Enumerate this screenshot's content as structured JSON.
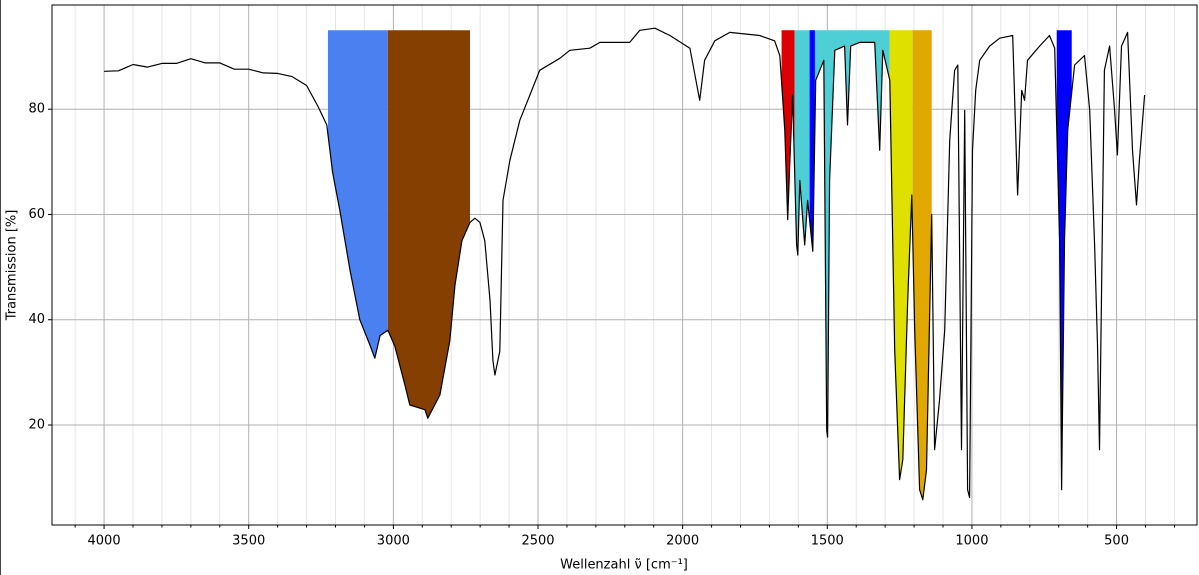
{
  "chart_data": {
    "type": "line",
    "xlabel": "Wellenzahl ν̃ [cm⁻¹]",
    "ylabel": "Transmission [%]",
    "xlim": [
      4180,
      222
    ],
    "ylim": [
      1,
      99.8
    ],
    "xticks": [
      4000,
      3500,
      3000,
      2500,
      2000,
      1500,
      1000,
      500
    ],
    "xminorticks": [
      4100,
      3900,
      3800,
      3700,
      3600,
      3400,
      3300,
      3200,
      3100,
      2900,
      2800,
      2700,
      2600,
      2400,
      2300,
      2200,
      2100,
      1900,
      1800,
      1700,
      1600,
      1400,
      1300,
      1200,
      1100,
      900,
      800,
      700,
      600,
      400,
      300
    ],
    "yticks": [
      20,
      40,
      60,
      80
    ],
    "grid": true,
    "color": "#000000",
    "x": [
      4000,
      3950,
      3900,
      3850,
      3800,
      3750,
      3700,
      3650,
      3600,
      3550,
      3500,
      3450,
      3400,
      3350,
      3300,
      3260,
      3230,
      3210,
      3185,
      3150,
      3116,
      3081,
      3064,
      3046,
      3019,
      2995,
      2960,
      2943,
      2891,
      2881,
      2839,
      2805,
      2787,
      2763,
      2735,
      2718,
      2701,
      2684,
      2666,
      2656,
      2649,
      2632,
      2621,
      2597,
      2563,
      2528,
      2494,
      2424,
      2390,
      2321,
      2286,
      2183,
      2148,
      2096,
      2044,
      1975,
      1941,
      1924,
      1889,
      1837,
      1734,
      1682,
      1664,
      1647,
      1637,
      1630,
      1620,
      1606,
      1602,
      1595,
      1578,
      1568,
      1554,
      1550,
      1540,
      1526,
      1512,
      1502,
      1499,
      1492,
      1474,
      1440,
      1430,
      1419,
      1388,
      1336,
      1319,
      1308,
      1284,
      1267,
      1250,
      1239,
      1222,
      1208,
      1198,
      1181,
      1170,
      1157,
      1139,
      1129,
      1112,
      1094,
      1077,
      1060,
      1049,
      1036,
      1025,
      1015,
      1008,
      998,
      987,
      973,
      939,
      904,
      859,
      842,
      828,
      818,
      808,
      766,
      732,
      714,
      697,
      690,
      680,
      669,
      645,
      611,
      593,
      576,
      566,
      559,
      542,
      524,
      507,
      497,
      483,
      462,
      445,
      431,
      421,
      403
    ],
    "values": [
      87.2,
      87.3,
      88.5,
      88.0,
      88.7,
      88.7,
      89.6,
      88.8,
      88.8,
      87.6,
      87.6,
      86.9,
      86.8,
      86.2,
      84.5,
      80.5,
      77,
      68,
      60.8,
      49.4,
      40,
      35.2,
      32.7,
      37,
      38,
      35,
      27.6,
      23.8,
      22.9,
      21.3,
      25.7,
      36,
      46.6,
      55,
      58.5,
      59.3,
      58.5,
      55,
      43.7,
      32.3,
      29.5,
      34,
      62.7,
      70.3,
      77.9,
      82.7,
      87.4,
      89.7,
      91.2,
      91.6,
      92.7,
      92.7,
      95,
      95.4,
      94,
      91.6,
      81.7,
      89.3,
      93,
      94.6,
      94,
      93,
      90.2,
      76,
      59,
      69.4,
      82.7,
      54.2,
      52.3,
      66.5,
      54.2,
      62.7,
      55,
      53,
      85.5,
      87.4,
      89.3,
      19,
      17.7,
      66.5,
      91.2,
      92,
      77,
      92,
      92.7,
      92.7,
      72.2,
      91.2,
      85.5,
      34.2,
      9.6,
      13.4,
      43.7,
      63.7,
      38,
      7.7,
      5.8,
      11.5,
      60,
      15.3,
      24.7,
      38,
      74,
      87.4,
      88.4,
      15.3,
      79.8,
      7.7,
      6.2,
      72.2,
      83.6,
      89.3,
      92,
      93.5,
      94,
      63.7,
      83.6,
      81.7,
      89.3,
      92,
      94,
      91.6,
      55,
      7.7,
      55,
      76,
      88.4,
      90.2,
      79.8,
      54.2,
      35.2,
      15.3,
      87.4,
      92,
      79.8,
      71.3,
      92,
      94.6,
      72.2,
      61.8,
      70.3,
      82.7
    ],
    "band_top": 95,
    "bands": [
      {
        "from": 3226,
        "to": 3019,
        "color": "#4a80f0"
      },
      {
        "from": 3019,
        "to": 2735,
        "color": "#853f00"
      },
      {
        "from": 1658,
        "to": 1613,
        "color": "#dd0000"
      },
      {
        "from": 1613,
        "to": 1284,
        "color": "#4ecfd6"
      },
      {
        "from": 1561,
        "to": 1543,
        "color": "#0000ff"
      },
      {
        "from": 1284,
        "to": 1205,
        "color": "#e0e000"
      },
      {
        "from": 1205,
        "to": 1139,
        "color": "#e0a800"
      },
      {
        "from": 707,
        "to": 655,
        "color": "#0000ff"
      }
    ]
  }
}
